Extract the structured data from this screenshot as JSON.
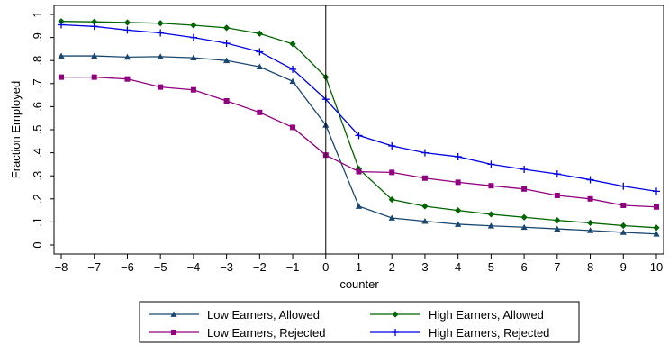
{
  "chart_data": {
    "type": "line",
    "title": "",
    "xlabel": "counter",
    "ylabel": "Fraction Employed",
    "x": [
      -8,
      -7,
      -6,
      -5,
      -4,
      -3,
      -2,
      -1,
      0,
      1,
      2,
      3,
      4,
      5,
      6,
      7,
      8,
      9,
      10
    ],
    "xlim": [
      -8,
      10
    ],
    "ylim": [
      0,
      1
    ],
    "y_ticks": [
      "0",
      ".1",
      ".2",
      ".3",
      ".4",
      ".5",
      ".6",
      ".7",
      ".8",
      ".9",
      "1"
    ],
    "x_ticks": [
      "-8",
      "-7",
      "-6",
      "-5",
      "-4",
      "-3",
      "-2",
      "-1",
      "0",
      "1",
      "2",
      "3",
      "4",
      "5",
      "6",
      "7",
      "8",
      "9",
      "10"
    ],
    "vertical_reference_line_x": 0,
    "grid": false,
    "legend_position": "bottom",
    "series": [
      {
        "name": "Low Earners, Allowed",
        "color": "#1a476f",
        "marker": "triangle",
        "values": [
          0.82,
          0.82,
          0.815,
          0.817,
          0.812,
          0.8,
          0.773,
          0.71,
          0.52,
          0.168,
          0.117,
          0.103,
          0.09,
          0.083,
          0.077,
          0.07,
          0.063,
          0.055,
          0.048
        ]
      },
      {
        "name": "High Earners, Allowed",
        "color": "#006400",
        "marker": "diamond",
        "values": [
          0.97,
          0.968,
          0.965,
          0.962,
          0.953,
          0.942,
          0.917,
          0.872,
          0.728,
          0.33,
          0.197,
          0.168,
          0.15,
          0.133,
          0.12,
          0.107,
          0.096,
          0.084,
          0.075
        ]
      },
      {
        "name": "Low Earners, Rejected",
        "color": "#90007f",
        "marker": "square",
        "values": [
          0.728,
          0.728,
          0.72,
          0.685,
          0.673,
          0.625,
          0.575,
          0.51,
          0.39,
          0.318,
          0.315,
          0.29,
          0.272,
          0.257,
          0.243,
          0.215,
          0.2,
          0.172,
          0.165
        ]
      },
      {
        "name": "High Earners, Rejected",
        "color": "#0000e6",
        "marker": "plus",
        "values": [
          0.955,
          0.948,
          0.932,
          0.92,
          0.9,
          0.875,
          0.838,
          0.762,
          0.632,
          0.475,
          0.43,
          0.4,
          0.383,
          0.35,
          0.328,
          0.308,
          0.283,
          0.255,
          0.233
        ]
      }
    ]
  }
}
